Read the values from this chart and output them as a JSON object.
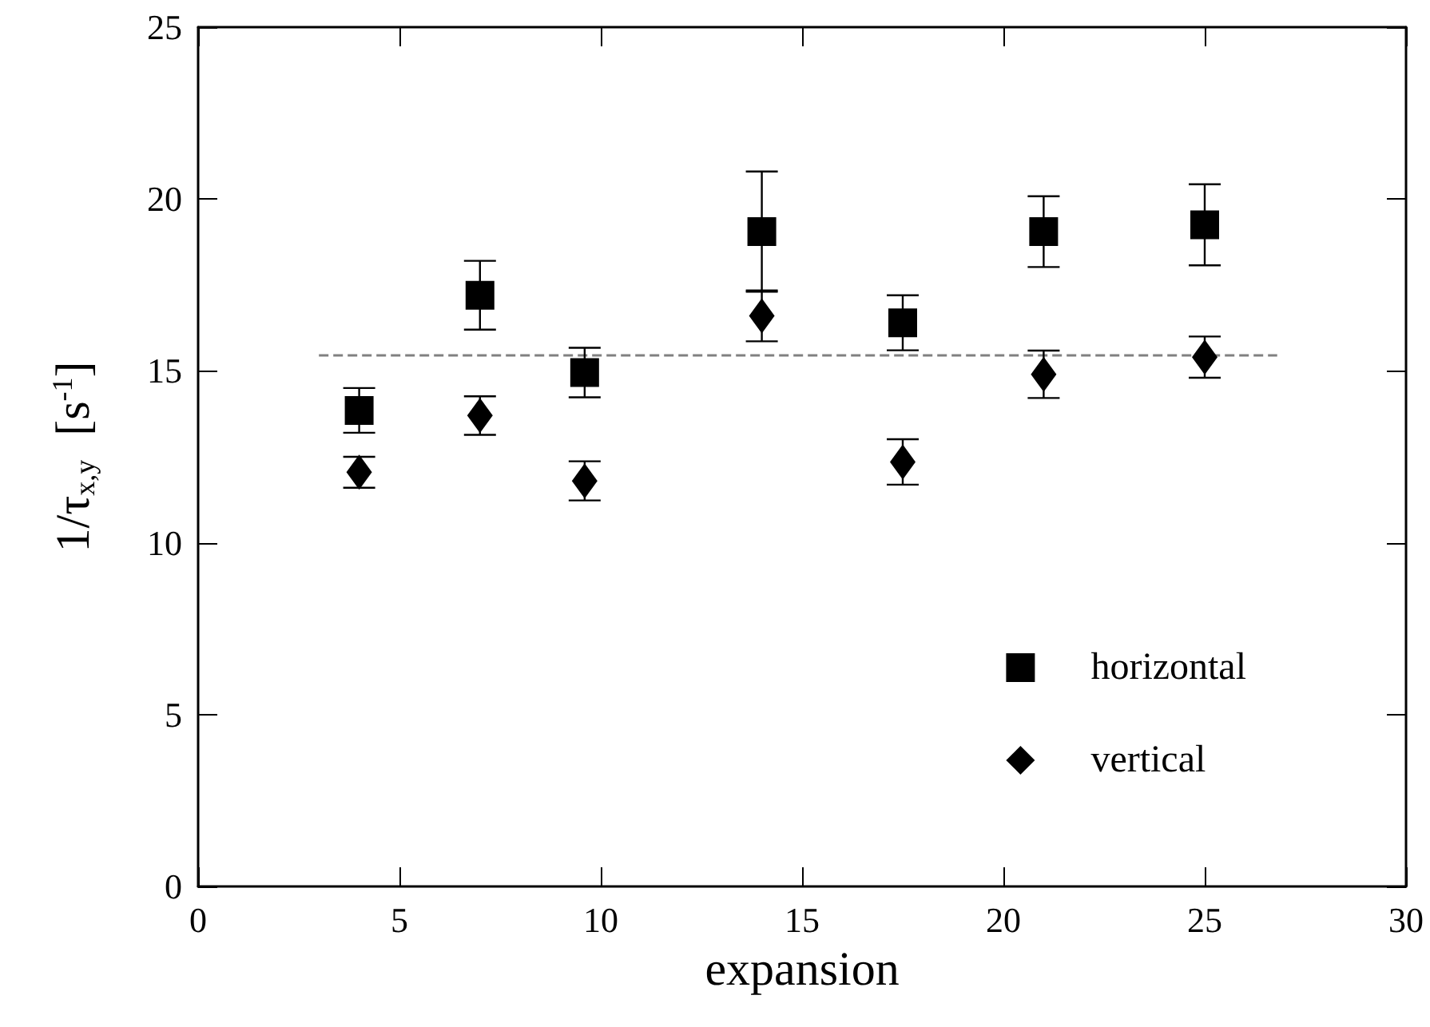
{
  "chart_data": {
    "type": "scatter",
    "xlabel": "expansion",
    "ylabel": "1/τ$_{x,y}$  [s$^{-1}$]",
    "xlim": [
      0,
      30
    ],
    "xticks": [
      0,
      5,
      10,
      15,
      20,
      25,
      30
    ],
    "ylim": [
      0,
      25
    ],
    "yticks": [
      0,
      5,
      10,
      15,
      20,
      25
    ],
    "grid": false,
    "legend": "bottom right",
    "series": [
      {
        "name": "horizontal",
        "type": "scatter",
        "marker": "square",
        "color": "#000000",
        "x": [
          4,
          7,
          9.6,
          14,
          17.5,
          21,
          25
        ],
        "values": [
          13.85,
          17.2,
          14.95,
          19.05,
          16.4,
          19.05,
          19.25
        ],
        "errors": [
          0.65,
          1.0,
          0.72,
          1.75,
          0.8,
          1.03,
          1.18
        ]
      },
      {
        "name": "vertical",
        "type": "scatter",
        "marker": "diamond",
        "color": "#000000",
        "x": [
          4,
          7,
          9.6,
          14,
          17.5,
          21,
          25
        ],
        "values": [
          12.05,
          13.7,
          11.8,
          16.6,
          12.35,
          14.9,
          15.4
        ],
        "errors": [
          0.45,
          0.56,
          0.57,
          0.74,
          0.66,
          0.69,
          0.6
        ]
      },
      {
        "type": "line",
        "marker": "none",
        "line_style": "dashed",
        "color": "#808080",
        "x": [
          3,
          26.8
        ],
        "values": [
          15.45,
          15.45
        ]
      }
    ]
  }
}
